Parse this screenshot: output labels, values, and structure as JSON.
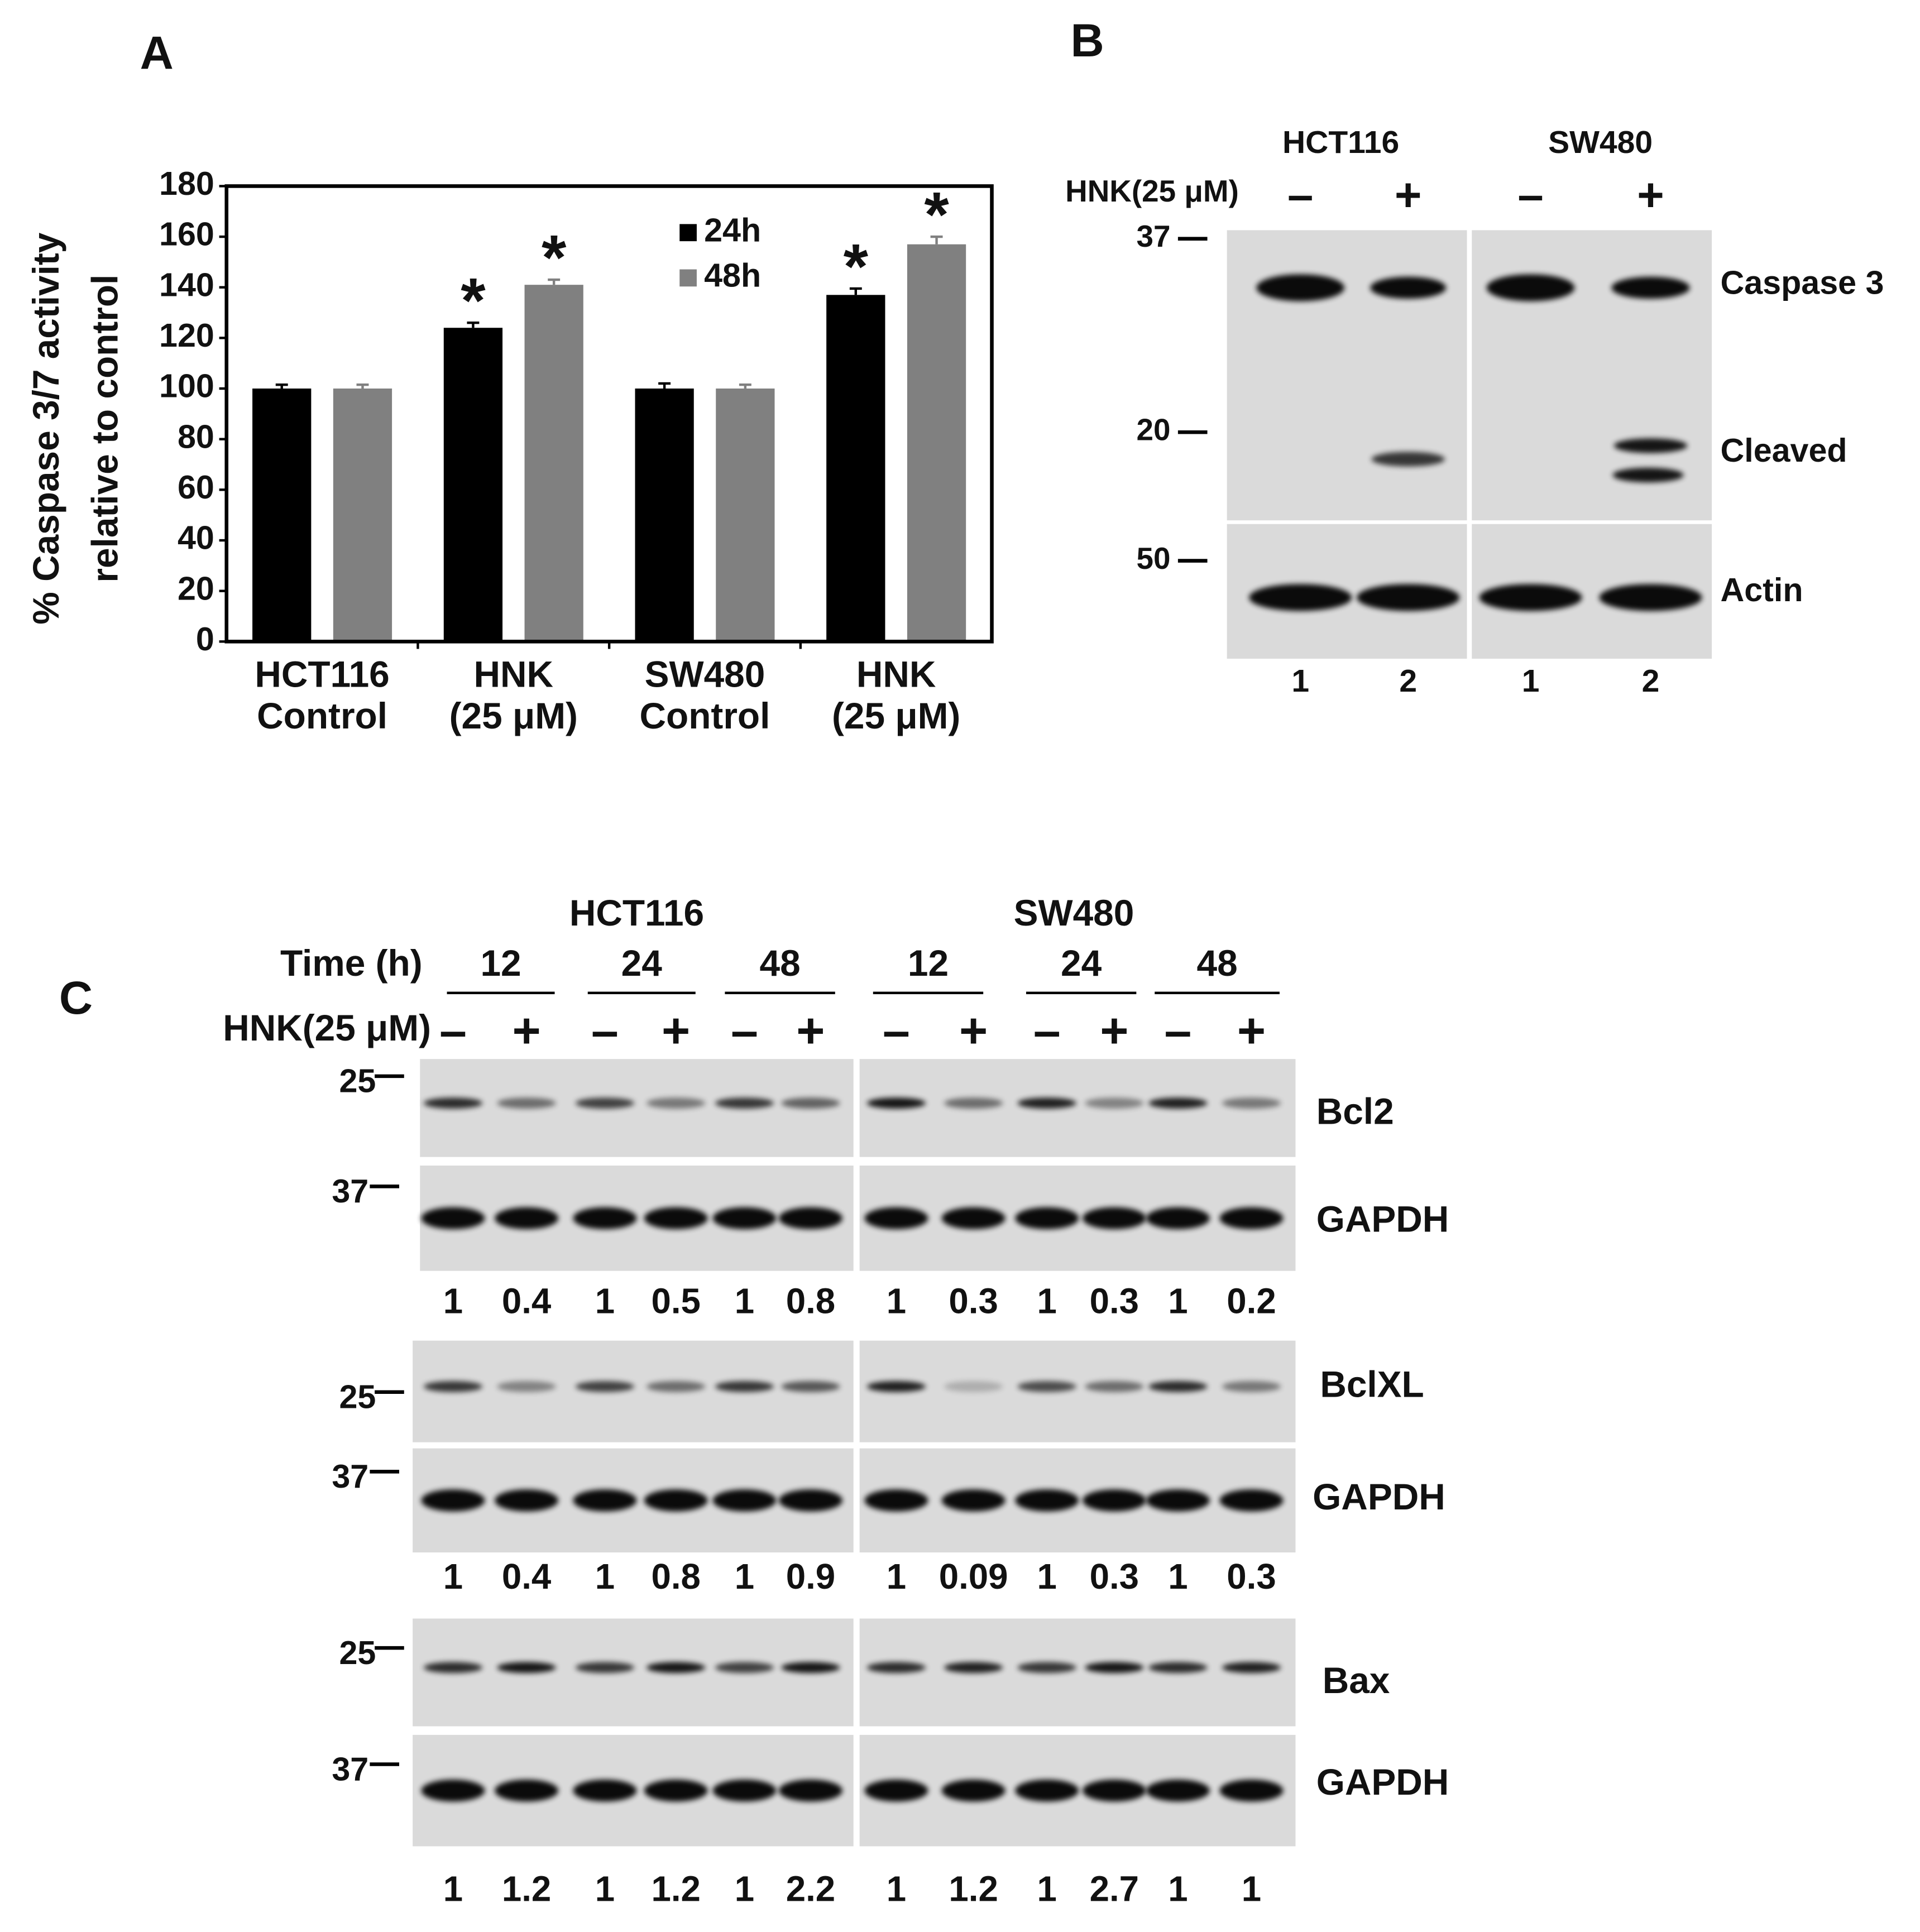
{
  "chart_data": {
    "type": "bar",
    "label": "A",
    "ylabel": [
      "% Caspase 3/7 activity",
      "relative to control"
    ],
    "categories": [
      [
        "HCT116",
        "Control"
      ],
      [
        "HNK",
        "(25 μM)"
      ],
      [
        "SW480",
        "Control"
      ],
      [
        "HNK",
        "(25 μM)"
      ]
    ],
    "series": [
      {
        "name": "24h",
        "color": "#000000",
        "values": [
          100,
          124,
          100,
          137
        ],
        "errors": [
          1.5,
          2,
          2,
          2.5
        ],
        "markers": [
          null,
          "*",
          null,
          "*"
        ]
      },
      {
        "name": "48h",
        "color": "#808080",
        "values": [
          100,
          141,
          100,
          157
        ],
        "errors": [
          1.5,
          2,
          1.5,
          3
        ],
        "markers": [
          null,
          "*",
          null,
          "*"
        ]
      }
    ],
    "ylim": [
      0,
      180
    ],
    "yticks": [
      0,
      20,
      40,
      60,
      80,
      100,
      120,
      140,
      160,
      180
    ],
    "grid": false
  },
  "panel_b": {
    "label": "B",
    "cell_lines": [
      "HCT116",
      "SW480"
    ],
    "treatment_label": "HNK(25 μM)",
    "signs": [
      "–",
      "+",
      "–",
      "+"
    ],
    "markers": [
      37,
      20,
      50
    ],
    "proteins": [
      "Caspase 3",
      "Cleaved",
      "Actin"
    ],
    "lanes": [
      1,
      2,
      1,
      2
    ]
  },
  "panel_c": {
    "label": "C",
    "cell_lines": [
      "HCT116",
      "SW480"
    ],
    "time_label": "Time (h)",
    "times": [
      12,
      24,
      48,
      12,
      24,
      48
    ],
    "treatment_label": "HNK(25 μM)",
    "signs": [
      "–",
      "+",
      "–",
      "+",
      "–",
      "+",
      "–",
      "+",
      "–",
      "+",
      "–",
      "+"
    ],
    "blots": [
      {
        "marker": 25,
        "protein": "Bcl2",
        "loading_marker": 37,
        "loading": "GAPDH",
        "ratios": [
          1,
          0.4,
          1,
          0.5,
          1,
          0.8,
          1,
          0.3,
          1,
          0.3,
          1,
          0.2
        ]
      },
      {
        "marker": 25,
        "protein": "BclXL",
        "loading_marker": 37,
        "loading": "GAPDH",
        "ratios": [
          1,
          0.4,
          1,
          0.8,
          1,
          0.9,
          1,
          0.09,
          1,
          0.3,
          1,
          0.3
        ]
      },
      {
        "marker": 25,
        "protein": "Bax",
        "loading_marker": 37,
        "loading": "GAPDH",
        "ratios": [
          1,
          1.2,
          1,
          1.2,
          1,
          2.2,
          1,
          1.2,
          1,
          2.7,
          1,
          1
        ]
      }
    ]
  }
}
